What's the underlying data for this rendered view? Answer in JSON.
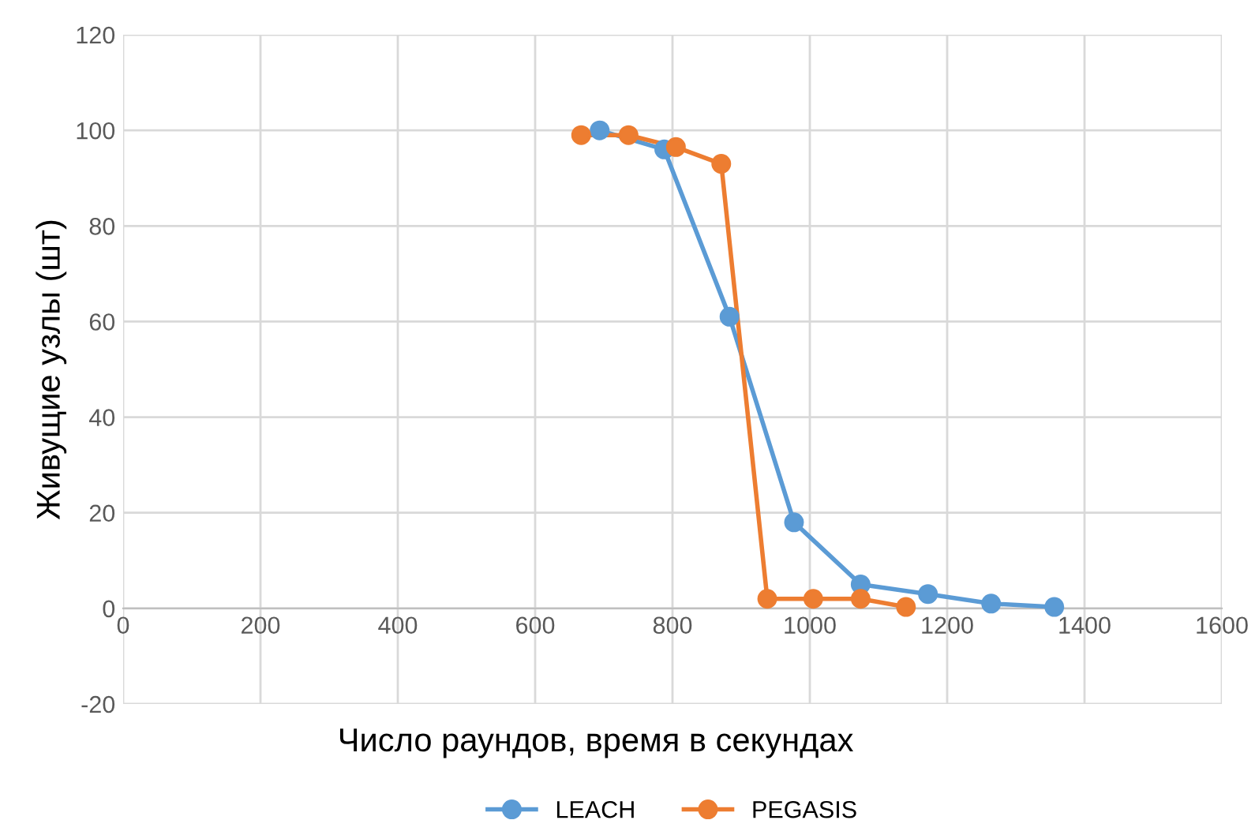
{
  "chart_data": {
    "type": "line",
    "xlabel": "Число раундов, время в секундах",
    "ylabel": "Живущие узлы (шт)",
    "xlim": [
      0,
      1600
    ],
    "xticks": [
      0,
      200,
      400,
      600,
      800,
      1000,
      1200,
      1400,
      1600
    ],
    "ylim": [
      -20,
      120
    ],
    "yticks": [
      -20,
      0,
      20,
      40,
      60,
      80,
      100,
      120
    ],
    "grid": true,
    "legend": "bottom",
    "marker": "circle",
    "line_style": "solid",
    "series": [
      {
        "name": "LEACH",
        "color": "#5b9bd5",
        "x": [
          694,
          788,
          883,
          977,
          1074,
          1172,
          1264,
          1356
        ],
        "values": [
          100,
          96,
          61,
          18,
          5,
          3,
          1,
          0.3
        ]
      },
      {
        "name": "PEGASIS",
        "color": "#ed7d31",
        "x": [
          667,
          736,
          805,
          871,
          938,
          1005,
          1074,
          1140
        ],
        "values": [
          99,
          99,
          96.5,
          93,
          2,
          2,
          2,
          0.3
        ]
      }
    ]
  }
}
